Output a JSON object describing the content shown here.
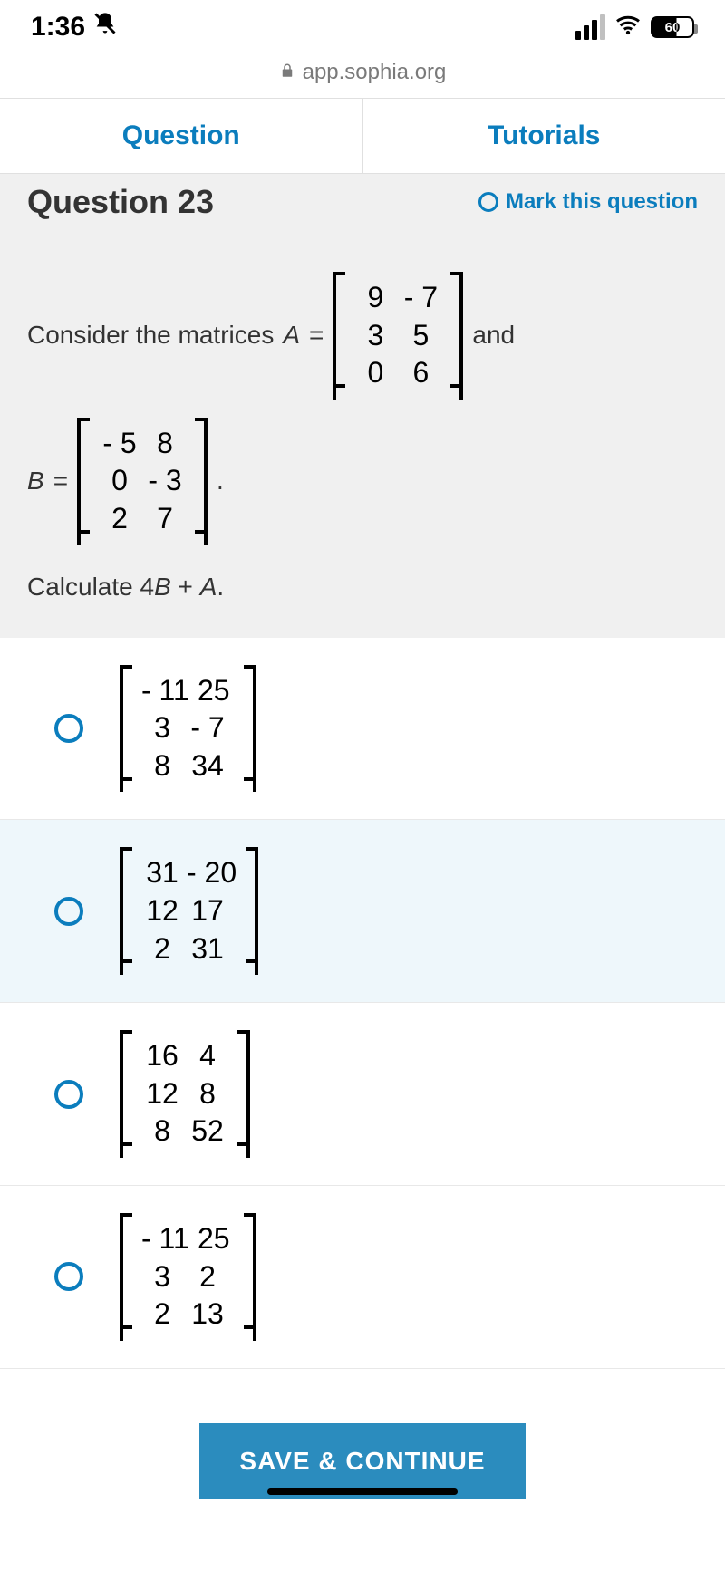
{
  "status": {
    "time": "1:36",
    "battery_pct": "60"
  },
  "url": "app.sophia.org",
  "tabs": {
    "question": "Question",
    "tutorials": "Tutorials"
  },
  "header": {
    "title": "Question 23",
    "mark": "Mark this question"
  },
  "problem": {
    "intro_part1": "Consider the matrices ",
    "A_label": "A",
    "eq": " = ",
    "matrixA": [
      [
        "9",
        "- 7"
      ],
      [
        "3",
        "5"
      ],
      [
        "0",
        "6"
      ]
    ],
    "and": "and",
    "B_label": "B",
    "matrixB": [
      [
        "- 5",
        "8"
      ],
      [
        "0",
        "- 3"
      ],
      [
        "2",
        "7"
      ]
    ],
    "period": ".",
    "calc_label": "Calculate ",
    "calc_expr": "4B + A",
    "calc_period": "."
  },
  "options": [
    {
      "matrix": [
        [
          "- 11",
          "25"
        ],
        [
          "3",
          "- 7"
        ],
        [
          "8",
          "34"
        ]
      ],
      "highlight": false
    },
    {
      "matrix": [
        [
          "31",
          "- 20"
        ],
        [
          "12",
          "17"
        ],
        [
          "2",
          "31"
        ]
      ],
      "highlight": true
    },
    {
      "matrix": [
        [
          "16",
          "4"
        ],
        [
          "12",
          "8"
        ],
        [
          "8",
          "52"
        ]
      ],
      "highlight": false
    },
    {
      "matrix": [
        [
          "- 11",
          "25"
        ],
        [
          "3",
          "2"
        ],
        [
          "2",
          "13"
        ]
      ],
      "highlight": false
    }
  ],
  "save_btn": "SAVE & CONTINUE",
  "colors": {
    "accent": "#0b7dbd",
    "body_bg": "#ffffff",
    "panel_bg": "#f0f0f0",
    "highlight_bg": "#eef7fb",
    "btn_bg": "#2b8cbe"
  }
}
